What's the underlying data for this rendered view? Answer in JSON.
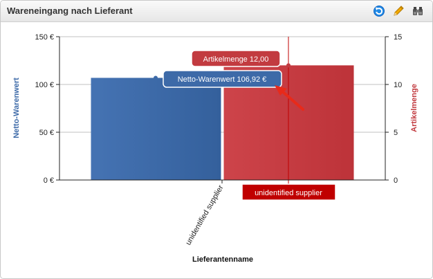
{
  "window": {
    "title": "Wareneingang nach Lieferant"
  },
  "toolbar": {
    "icons": [
      "refresh-icon",
      "pencil-icon",
      "binoculars-icon"
    ],
    "refresh_icon_color": "#1e88e5",
    "pencil_icon_color": "#f2a900"
  },
  "colors": {
    "netto": "#3d6aa8",
    "artikel": "#c23b40",
    "crosshair": "#c00000",
    "arrow": "#e82a1a"
  },
  "tooltips": {
    "artikel": "Artikelmenge 12,00",
    "netto": "Netto-Warenwert 106,92 €",
    "category": "unidentified supplier"
  },
  "chart_data": {
    "type": "bar",
    "categories": [
      "unidentified supplier"
    ],
    "series": [
      {
        "name": "Netto-Warenwert",
        "axis": "left",
        "values": [
          106.92
        ]
      },
      {
        "name": "Artikelmenge",
        "axis": "right",
        "values": [
          12
        ]
      }
    ],
    "xlabel": "Lieferantenname",
    "ylabel_left": "Netto-Warenwert",
    "ylabel_right": "Artikelmenge",
    "ylim_left": [
      0,
      150
    ],
    "ylim_right": [
      0,
      15
    ],
    "yticks_left": [
      "0 €",
      "50 €",
      "100 €",
      "150 €"
    ],
    "yticks_right": [
      "0",
      "5",
      "10",
      "15"
    ],
    "grid": true,
    "legend": "none"
  }
}
